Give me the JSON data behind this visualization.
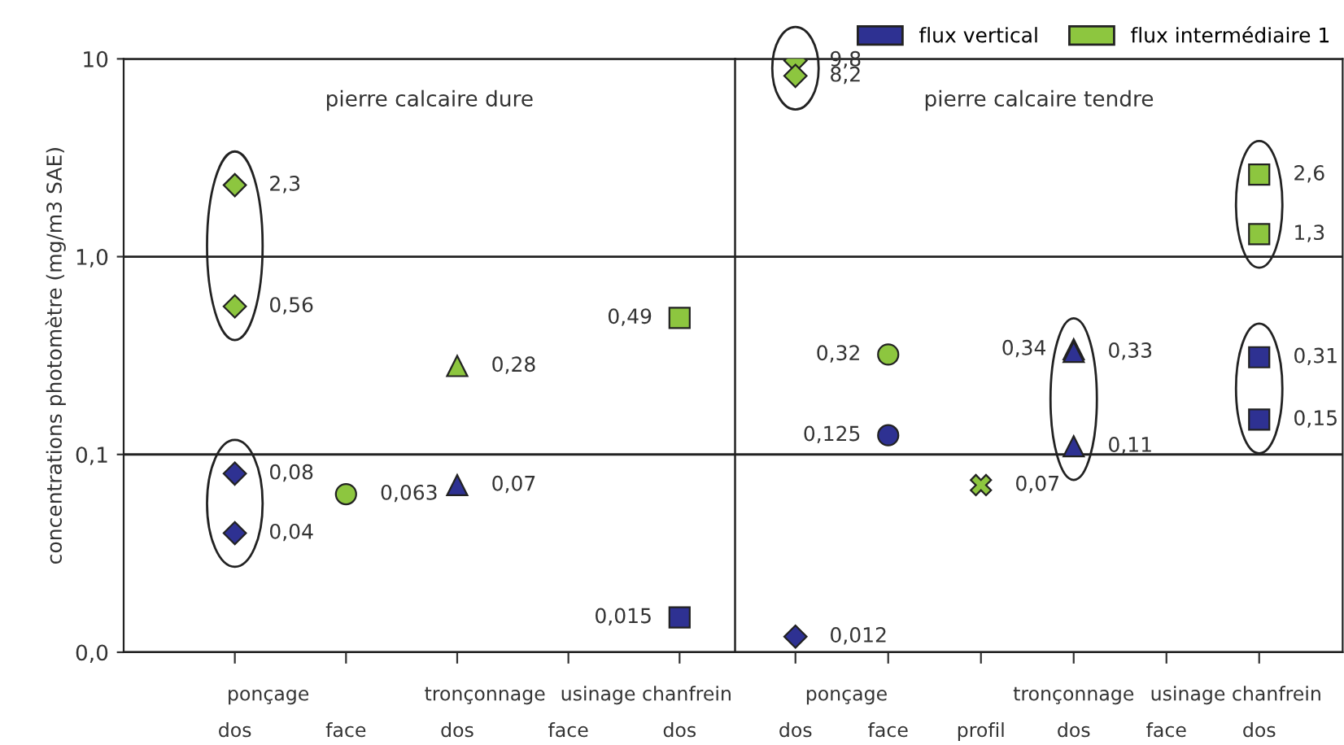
{
  "chart_data": [
    {
      "type": "scatter",
      "title": "pierre calcaire dure",
      "ylabel": "concentrations photomètre (mg/m3 SAE)",
      "categories": [
        "dos",
        "face",
        "dos",
        "face",
        "dos"
      ],
      "annotations": [
        "ponçage",
        "tronçonnage",
        "usinage chanfrein"
      ],
      "log": "y",
      "ylim": [
        0.01,
        10
      ],
      "yticks": [
        {
          "value": 0.01,
          "label": "0,0"
        },
        {
          "value": 0.1,
          "label": "0,1"
        },
        {
          "value": 1,
          "label": "1,0"
        },
        10
      ],
      "grid": "y",
      "series": [
        {
          "color": "#8dc63f",
          "marker": "diamond",
          "values": [
            2.3,
            null,
            null,
            null,
            null
          ],
          "value_labels": [
            "2,3",
            null,
            null,
            null,
            null
          ]
        },
        {
          "color": "#8dc63f",
          "marker": "diamond",
          "values": [
            0.56,
            null,
            null,
            null,
            null
          ],
          "value_labels": [
            "0,56",
            null,
            null,
            null,
            null
          ]
        },
        {
          "color": "#2e3192",
          "marker": "diamond",
          "values": [
            0.08,
            null,
            null,
            null,
            null
          ],
          "value_labels": [
            "0,08",
            null,
            null,
            null,
            null
          ]
        },
        {
          "color": "#2e3192",
          "marker": "diamond",
          "values": [
            0.04,
            null,
            null,
            null,
            null
          ],
          "value_labels": [
            "0,04",
            null,
            null,
            null,
            null
          ]
        },
        {
          "color": "#8dc63f",
          "marker": "circle",
          "values": [
            null,
            0.063,
            null,
            null,
            null
          ],
          "value_labels": [
            null,
            "0,063",
            null,
            null,
            null
          ]
        },
        {
          "color": "#8dc63f",
          "marker": "triangle",
          "values": [
            null,
            null,
            0.28,
            null,
            null
          ],
          "value_labels": [
            null,
            null,
            "0,28",
            null,
            null
          ]
        },
        {
          "color": "#2e3192",
          "marker": "triangle",
          "values": [
            null,
            null,
            0.07,
            null,
            null
          ],
          "value_labels": [
            null,
            null,
            "0,07",
            null,
            null
          ]
        },
        {
          "color": "#8dc63f",
          "marker": "square",
          "values": [
            null,
            null,
            null,
            null,
            0.49
          ],
          "value_labels": [
            null,
            null,
            null,
            null,
            "0,49"
          ]
        },
        {
          "color": "#2e3192",
          "marker": "square",
          "values": [
            null,
            null,
            null,
            null,
            0.015
          ],
          "value_labels": [
            null,
            null,
            null,
            null,
            "0,015"
          ]
        }
      ]
    },
    {
      "type": "scatter",
      "title": "pierre calcaire tendre",
      "categories": [
        "dos",
        "face",
        "profil",
        "dos",
        "face",
        "dos"
      ],
      "annotations": [
        "ponçage",
        "tronçonnage",
        "usinage chanfrein"
      ],
      "log": "y",
      "ylim": [
        0.01,
        10
      ],
      "yticks": [
        {
          "value": 0.01,
          "label": null
        },
        {
          "value": 0.1,
          "label": null
        },
        {
          "value": 1,
          "label": null
        },
        {
          "value": 10,
          "label": null
        }
      ],
      "grid": "y",
      "tick_labels": "x",
      "legend": "top right",
      "series": [
        {
          "name": "flux intermédiaire 1",
          "color": "#8dc63f",
          "marker": "diamond",
          "values": [
            9.8,
            null,
            null,
            null,
            null,
            null
          ],
          "value_labels": [
            "9,8",
            null,
            null,
            null,
            null,
            null
          ]
        },
        {
          "color": "#8dc63f",
          "marker": "diamond",
          "values": [
            8.2,
            null,
            null,
            null,
            null,
            null
          ],
          "value_labels": [
            "8,2",
            null,
            null,
            null,
            null,
            null
          ]
        },
        {
          "name": "flux vertical",
          "color": "#2e3192",
          "marker": "diamond",
          "values": [
            0.012,
            null,
            null,
            null,
            null,
            null
          ],
          "value_labels": [
            "0,012",
            null,
            null,
            null,
            null,
            null
          ]
        },
        {
          "color": "#8dc63f",
          "marker": "circle",
          "values": [
            null,
            0.32,
            null,
            null,
            null,
            null
          ],
          "value_labels": [
            null,
            "0,32",
            null,
            null,
            null,
            null
          ]
        },
        {
          "color": "#2e3192",
          "marker": "circle",
          "values": [
            null,
            0.125,
            null,
            null,
            null,
            null
          ],
          "value_labels": [
            null,
            "0,125",
            null,
            null,
            null,
            null
          ]
        },
        {
          "color": "#8dc63f",
          "marker": "cross",
          "values": [
            null,
            null,
            0.07,
            null,
            null,
            null
          ],
          "value_labels": [
            null,
            null,
            "0,07",
            null,
            null,
            null
          ]
        },
        {
          "color": "#8dc63f",
          "marker": "triangle",
          "values": [
            null,
            null,
            null,
            0.34,
            null,
            null
          ],
          "value_labels": [
            null,
            null,
            null,
            "0,34",
            null,
            null
          ]
        },
        {
          "color": "#2e3192",
          "marker": "triangle",
          "values": [
            null,
            null,
            null,
            0.33,
            null,
            null
          ],
          "value_labels": [
            null,
            null,
            null,
            "0,33",
            null,
            null
          ]
        },
        {
          "color": "#2e3192",
          "marker": "triangle",
          "values": [
            null,
            null,
            null,
            0.11,
            null,
            null
          ],
          "value_labels": [
            null,
            null,
            null,
            "0,11",
            null,
            null
          ]
        },
        {
          "color": "#8dc63f",
          "marker": "square",
          "values": [
            null,
            null,
            null,
            null,
            null,
            2.6
          ],
          "value_labels": [
            null,
            null,
            null,
            null,
            null,
            "2,6"
          ]
        },
        {
          "color": "#8dc63f",
          "marker": "square",
          "values": [
            null,
            null,
            null,
            null,
            null,
            1.3
          ],
          "value_labels": [
            null,
            null,
            null,
            null,
            null,
            "1,3"
          ]
        },
        {
          "color": "#2e3192",
          "marker": "square",
          "values": [
            null,
            null,
            null,
            null,
            null,
            0.31
          ],
          "value_labels": [
            null,
            null,
            null,
            null,
            null,
            "0,31"
          ]
        },
        {
          "color": "#2e3192",
          "marker": "square",
          "values": [
            null,
            null,
            null,
            null,
            null,
            0.15
          ],
          "value_labels": [
            null,
            null,
            null,
            null,
            null,
            "0,15"
          ]
        }
      ]
    }
  ]
}
